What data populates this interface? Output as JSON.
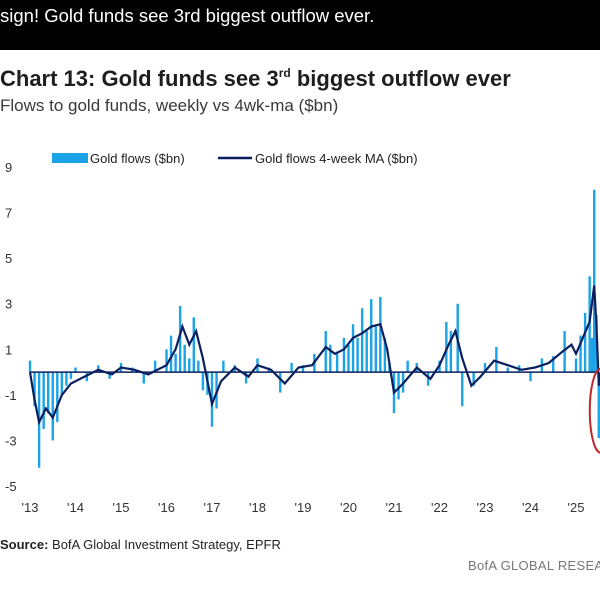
{
  "headline": "sign! Gold funds see 3rd biggest outflow ever.",
  "chart_title_main": "Chart 13: Gold funds see 3",
  "chart_title_sup": "rd",
  "chart_title_rest": " biggest outflow ever",
  "chart_subtitle": "Flows to gold funds, weekly vs 4wk-ma ($bn)",
  "source_label": "Source:",
  "source_text": " BofA Global Investment Strategy, EPFR",
  "brand": "BofA GLOBAL RESEA",
  "colors": {
    "bars": "#1aa3e6",
    "ma_line": "#0b1f5e",
    "highlight_circle": "#c0262d",
    "zero_line": "#0b1f5e"
  },
  "chart_data": {
    "type": "bar",
    "ylim": [
      -5,
      9
    ],
    "yticks": [
      "9",
      "7",
      "5",
      "3",
      "1",
      "-1",
      "-3",
      "-5"
    ],
    "xticks": [
      "'13",
      "'14",
      "'15",
      "'16",
      "'17",
      "'18",
      "'19",
      "'20",
      "'21",
      "'22",
      "'23",
      "'24",
      "'25"
    ],
    "legend": {
      "bars": "Gold flows ($bn)",
      "line": "Gold flows 4-week MA ($bn)"
    },
    "annotation": "highlight-circle-latest-outflow",
    "series_note": "weekly",
    "series": [
      {
        "name": "Gold flows ($bn)",
        "kind": "bar",
        "x": [
          2013.0,
          2013.1,
          2013.2,
          2013.3,
          2013.4,
          2013.5,
          2013.6,
          2013.7,
          2013.8,
          2013.9,
          2014.0,
          2014.25,
          2014.5,
          2014.75,
          2015.0,
          2015.25,
          2015.5,
          2015.75,
          2016.0,
          2016.1,
          2016.2,
          2016.3,
          2016.4,
          2016.5,
          2016.6,
          2016.7,
          2016.8,
          2016.9,
          2017.0,
          2017.1,
          2017.25,
          2017.5,
          2017.75,
          2018.0,
          2018.25,
          2018.5,
          2018.75,
          2019.0,
          2019.25,
          2019.5,
          2019.6,
          2019.75,
          2019.9,
          2020.0,
          2020.1,
          2020.2,
          2020.3,
          2020.4,
          2020.5,
          2020.6,
          2020.7,
          2020.8,
          2020.9,
          2021.0,
          2021.1,
          2021.2,
          2021.3,
          2021.5,
          2021.75,
          2022.0,
          2022.15,
          2022.25,
          2022.4,
          2022.5,
          2022.75,
          2023.0,
          2023.25,
          2023.5,
          2023.75,
          2024.0,
          2024.25,
          2024.5,
          2024.75,
          2025.0,
          2025.1,
          2025.2,
          2025.3,
          2025.35,
          2025.4,
          2025.45,
          2025.5,
          2025.55
        ],
        "values": [
          0.5,
          -1.5,
          -4.2,
          -2.5,
          -1.8,
          -3.0,
          -2.2,
          -1.0,
          -0.6,
          -0.3,
          0.2,
          -0.4,
          0.3,
          -0.3,
          0.4,
          0.2,
          -0.5,
          0.5,
          1.0,
          1.6,
          0.8,
          2.9,
          1.2,
          0.6,
          2.4,
          0.5,
          -0.8,
          -1.0,
          -2.4,
          -1.6,
          0.5,
          0.3,
          -0.5,
          0.6,
          0.2,
          -0.9,
          0.4,
          0.3,
          0.8,
          1.8,
          1.2,
          0.9,
          1.5,
          1.2,
          2.1,
          1.5,
          2.8,
          1.8,
          3.2,
          2.0,
          3.3,
          1.5,
          0.4,
          -1.8,
          -1.2,
          -0.9,
          0.5,
          0.4,
          -0.6,
          0.5,
          2.2,
          1.8,
          3.0,
          -1.5,
          -0.6,
          0.4,
          1.1,
          0.2,
          0.3,
          -0.4,
          0.6,
          0.7,
          1.8,
          0.6,
          1.6,
          2.6,
          4.2,
          1.5,
          8.0,
          2.5,
          -2.9,
          -0.5
        ]
      },
      {
        "name": "Gold flows 4-week MA ($bn)",
        "kind": "line",
        "x": [
          2013.0,
          2013.1,
          2013.2,
          2013.35,
          2013.5,
          2013.7,
          2013.9,
          2014.2,
          2014.5,
          2014.8,
          2015.0,
          2015.3,
          2015.6,
          2016.0,
          2016.2,
          2016.35,
          2016.5,
          2016.65,
          2016.8,
          2017.0,
          2017.2,
          2017.5,
          2017.8,
          2018.0,
          2018.3,
          2018.6,
          2018.9,
          2019.2,
          2019.5,
          2019.7,
          2019.9,
          2020.1,
          2020.3,
          2020.5,
          2020.7,
          2020.85,
          2021.0,
          2021.2,
          2021.5,
          2021.8,
          2022.0,
          2022.2,
          2022.35,
          2022.5,
          2022.7,
          2022.9,
          2023.2,
          2023.5,
          2023.8,
          2024.1,
          2024.4,
          2024.7,
          2024.9,
          2025.0,
          2025.15,
          2025.3,
          2025.4,
          2025.45,
          2025.5,
          2025.55
        ],
        "values": [
          0.0,
          -1.2,
          -2.2,
          -1.6,
          -2.0,
          -1.0,
          -0.5,
          -0.2,
          0.1,
          -0.1,
          0.2,
          0.1,
          -0.1,
          0.3,
          1.0,
          2.0,
          1.2,
          1.8,
          0.6,
          -1.4,
          -0.4,
          0.2,
          -0.2,
          0.3,
          0.1,
          -0.5,
          0.2,
          0.3,
          1.1,
          0.8,
          1.0,
          1.5,
          1.7,
          2.0,
          2.1,
          1.0,
          -0.9,
          -0.5,
          0.2,
          -0.3,
          0.3,
          1.2,
          1.8,
          0.6,
          -0.6,
          -0.2,
          0.5,
          0.3,
          0.1,
          0.2,
          0.4,
          0.9,
          1.2,
          0.8,
          1.5,
          2.2,
          3.8,
          2.0,
          -0.6,
          0.0
        ]
      }
    ]
  }
}
